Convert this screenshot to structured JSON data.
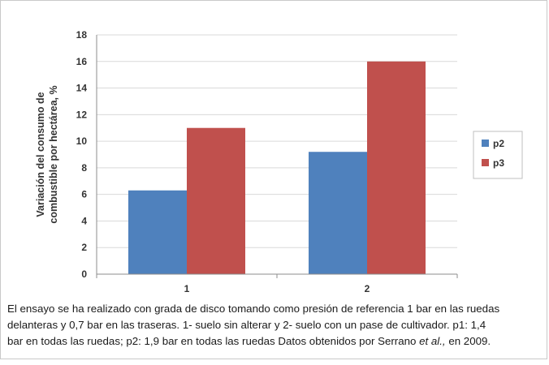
{
  "chart_data": {
    "type": "bar",
    "categories": [
      "1",
      "2"
    ],
    "series": [
      {
        "name": "p2",
        "values": [
          6.3,
          9.2
        ],
        "color": "#4f81bd"
      },
      {
        "name": "p3",
        "values": [
          11,
          16
        ],
        "color": "#c0504d"
      }
    ],
    "title": "",
    "xlabel": "",
    "ylabel": [
      "Variación del consumo de",
      "combustible por hectárea, %"
    ],
    "ylim": [
      0,
      18
    ],
    "yticks": [
      0,
      2,
      4,
      6,
      8,
      10,
      12,
      14,
      16,
      18
    ],
    "grid": true,
    "legend": "right"
  },
  "caption": {
    "line1": "El ensayo se ha realizado con grada de disco tomando como presión de referencia 1 bar en las ruedas",
    "line2": "delanteras y 0,7 bar en las traseras. 1- suelo sin alterar y 2- suelo con un pase de cultivador. p1: 1,4",
    "line3_prefix": "bar en todas las ruedas; p2: 1,9 bar en todas las ruedas Datos obtenidos por Serrano ",
    "line3_italic": "et al.,",
    "line3_suffix": " en 2009."
  }
}
